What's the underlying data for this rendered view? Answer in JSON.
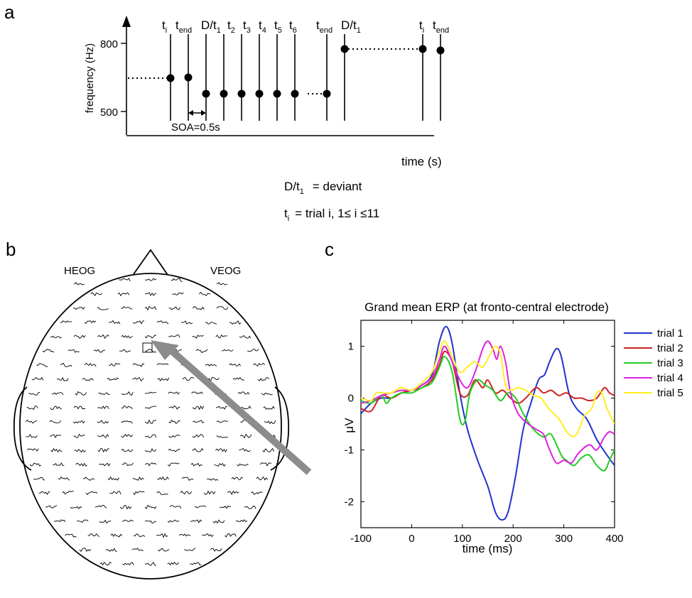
{
  "panel_a": {
    "letter": "a",
    "ylabel": "frequency (Hz)",
    "xlabel": "time (s)",
    "yticks": [
      "800",
      "500"
    ],
    "soa_label": "SOA=0.5s",
    "marker_labels": [
      {
        "main": "t",
        "sub": "i"
      },
      {
        "main": "t",
        "sub": "end"
      },
      {
        "main": "D/t",
        "sub": "1"
      },
      {
        "main": "t",
        "sub": "2"
      },
      {
        "main": "t",
        "sub": "3"
      },
      {
        "main": "t",
        "sub": "4"
      },
      {
        "main": "t",
        "sub": "5"
      },
      {
        "main": "t",
        "sub": "6"
      },
      {
        "main": "t",
        "sub": "end"
      },
      {
        "main": "D/t",
        "sub": "1"
      },
      {
        "main": "t",
        "sub": "i"
      },
      {
        "main": "t",
        "sub": "end"
      }
    ],
    "legend_deviant": {
      "main": "D/t",
      "sub": "1",
      "text": "= deviant"
    },
    "legend_trial": {
      "main": "t",
      "sub": "i",
      "text": "= trial i,  1≤ i ≤11"
    }
  },
  "panel_b": {
    "letter": "b",
    "label_left": "HEOG",
    "label_right": "VEOG"
  },
  "panel_c": {
    "letter": "c",
    "title": "Grand mean ERP (at fronto-central electrode)",
    "ylabel": "μV",
    "xlabel": "time (ms)"
  },
  "chart_data": {
    "type": "line",
    "title": "Grand mean ERP (at fronto-central electrode)",
    "xlabel": "time (ms)",
    "ylabel": "μV",
    "xlim": [
      -100,
      400
    ],
    "ylim": [
      -2.5,
      1.5
    ],
    "xticks": [
      -100,
      0,
      100,
      200,
      300,
      400
    ],
    "yticks": [
      1,
      0,
      -1,
      -2
    ],
    "legend_position": "right-outside",
    "grid": false,
    "series": [
      {
        "name": "trial 1",
        "color": "#2233cc",
        "points": [
          [
            -100,
            -0.3
          ],
          [
            -80,
            -0.1
          ],
          [
            -60,
            0.0
          ],
          [
            -40,
            0.0
          ],
          [
            -20,
            0.1
          ],
          [
            0,
            0.15
          ],
          [
            20,
            0.25
          ],
          [
            40,
            0.45
          ],
          [
            55,
            1.1
          ],
          [
            68,
            1.38
          ],
          [
            80,
            1.05
          ],
          [
            95,
            0.1
          ],
          [
            110,
            -0.6
          ],
          [
            130,
            -1.2
          ],
          [
            150,
            -1.7
          ],
          [
            165,
            -2.2
          ],
          [
            178,
            -2.35
          ],
          [
            190,
            -2.2
          ],
          [
            205,
            -1.5
          ],
          [
            220,
            -0.6
          ],
          [
            235,
            -0.1
          ],
          [
            250,
            0.35
          ],
          [
            262,
            0.45
          ],
          [
            272,
            0.7
          ],
          [
            285,
            0.95
          ],
          [
            295,
            0.8
          ],
          [
            310,
            0.1
          ],
          [
            325,
            -0.2
          ],
          [
            345,
            -0.4
          ],
          [
            365,
            -0.8
          ],
          [
            385,
            -1.1
          ],
          [
            400,
            -1.3
          ]
        ]
      },
      {
        "name": "trial 2",
        "color": "#cc2222",
        "points": [
          [
            -100,
            -0.2
          ],
          [
            -80,
            -0.25
          ],
          [
            -60,
            0.05
          ],
          [
            -40,
            0.0
          ],
          [
            -20,
            0.1
          ],
          [
            0,
            0.15
          ],
          [
            20,
            0.2
          ],
          [
            40,
            0.35
          ],
          [
            55,
            0.65
          ],
          [
            65,
            0.9
          ],
          [
            80,
            0.7
          ],
          [
            95,
            0.1
          ],
          [
            110,
            0.05
          ],
          [
            125,
            0.35
          ],
          [
            140,
            0.2
          ],
          [
            150,
            0.35
          ],
          [
            165,
            0.1
          ],
          [
            180,
            0.15
          ],
          [
            195,
            0.0
          ],
          [
            210,
            -0.1
          ],
          [
            225,
            0.0
          ],
          [
            245,
            0.2
          ],
          [
            260,
            0.1
          ],
          [
            275,
            0.15
          ],
          [
            290,
            0.05
          ],
          [
            305,
            0.1
          ],
          [
            320,
            0.0
          ],
          [
            335,
            0.0
          ],
          [
            350,
            -0.05
          ],
          [
            365,
            0.0
          ],
          [
            380,
            0.2
          ],
          [
            390,
            0.1
          ],
          [
            400,
            0.05
          ]
        ]
      },
      {
        "name": "trial 3",
        "color": "#22cc22",
        "points": [
          [
            -100,
            -0.05
          ],
          [
            -80,
            -0.1
          ],
          [
            -60,
            0.05
          ],
          [
            -50,
            -0.1
          ],
          [
            -40,
            0.0
          ],
          [
            -20,
            0.1
          ],
          [
            0,
            0.1
          ],
          [
            20,
            0.2
          ],
          [
            40,
            0.3
          ],
          [
            55,
            0.6
          ],
          [
            65,
            0.8
          ],
          [
            80,
            0.5
          ],
          [
            95,
            -0.4
          ],
          [
            105,
            -0.45
          ],
          [
            115,
            0.1
          ],
          [
            130,
            0.35
          ],
          [
            145,
            0.25
          ],
          [
            160,
            0.15
          ],
          [
            175,
            -0.05
          ],
          [
            190,
            0.1
          ],
          [
            205,
            0.0
          ],
          [
            220,
            -0.3
          ],
          [
            240,
            -0.6
          ],
          [
            260,
            -0.75
          ],
          [
            275,
            -0.7
          ],
          [
            295,
            -1.1
          ],
          [
            305,
            -1.2
          ],
          [
            320,
            -1.3
          ],
          [
            335,
            -1.15
          ],
          [
            350,
            -1.1
          ],
          [
            365,
            -1.3
          ],
          [
            380,
            -1.4
          ],
          [
            390,
            -1.2
          ],
          [
            400,
            -1.0
          ]
        ]
      },
      {
        "name": "trial 4",
        "color": "#dd22dd",
        "points": [
          [
            -100,
            -0.1
          ],
          [
            -80,
            -0.05
          ],
          [
            -60,
            0.05
          ],
          [
            -40,
            0.1
          ],
          [
            -20,
            0.15
          ],
          [
            0,
            0.15
          ],
          [
            20,
            0.25
          ],
          [
            40,
            0.4
          ],
          [
            55,
            0.75
          ],
          [
            65,
            1.0
          ],
          [
            80,
            0.7
          ],
          [
            95,
            0.35
          ],
          [
            110,
            0.2
          ],
          [
            125,
            0.5
          ],
          [
            140,
            0.95
          ],
          [
            150,
            1.1
          ],
          [
            160,
            0.95
          ],
          [
            168,
            0.75
          ],
          [
            175,
            1.0
          ],
          [
            185,
            0.7
          ],
          [
            195,
            0.1
          ],
          [
            210,
            -0.3
          ],
          [
            230,
            -0.5
          ],
          [
            245,
            -0.6
          ],
          [
            260,
            -0.7
          ],
          [
            270,
            -0.95
          ],
          [
            285,
            -1.25
          ],
          [
            300,
            -1.2
          ],
          [
            315,
            -1.25
          ],
          [
            330,
            -1.05
          ],
          [
            350,
            -0.9
          ],
          [
            365,
            -1.0
          ],
          [
            380,
            -0.75
          ],
          [
            390,
            -0.65
          ],
          [
            400,
            -0.7
          ]
        ]
      },
      {
        "name": "trial 5",
        "color": "#ffee22",
        "points": [
          [
            -100,
            0.0
          ],
          [
            -80,
            -0.05
          ],
          [
            -70,
            0.1
          ],
          [
            -55,
            0.1
          ],
          [
            -40,
            0.1
          ],
          [
            -20,
            0.2
          ],
          [
            0,
            0.15
          ],
          [
            20,
            0.3
          ],
          [
            40,
            0.5
          ],
          [
            55,
            0.9
          ],
          [
            65,
            1.1
          ],
          [
            80,
            0.8
          ],
          [
            95,
            0.5
          ],
          [
            110,
            0.6
          ],
          [
            125,
            0.7
          ],
          [
            140,
            0.6
          ],
          [
            155,
            0.85
          ],
          [
            165,
            1.0
          ],
          [
            175,
            0.85
          ],
          [
            185,
            0.25
          ],
          [
            195,
            0.15
          ],
          [
            210,
            0.2
          ],
          [
            225,
            0.15
          ],
          [
            240,
            0.05
          ],
          [
            255,
            0.0
          ],
          [
            270,
            -0.2
          ],
          [
            290,
            -0.4
          ],
          [
            310,
            -0.7
          ],
          [
            325,
            -0.7
          ],
          [
            340,
            -0.35
          ],
          [
            355,
            -0.2
          ],
          [
            365,
            0.1
          ],
          [
            375,
            0.1
          ],
          [
            385,
            -0.2
          ],
          [
            400,
            -0.5
          ]
        ]
      }
    ]
  }
}
